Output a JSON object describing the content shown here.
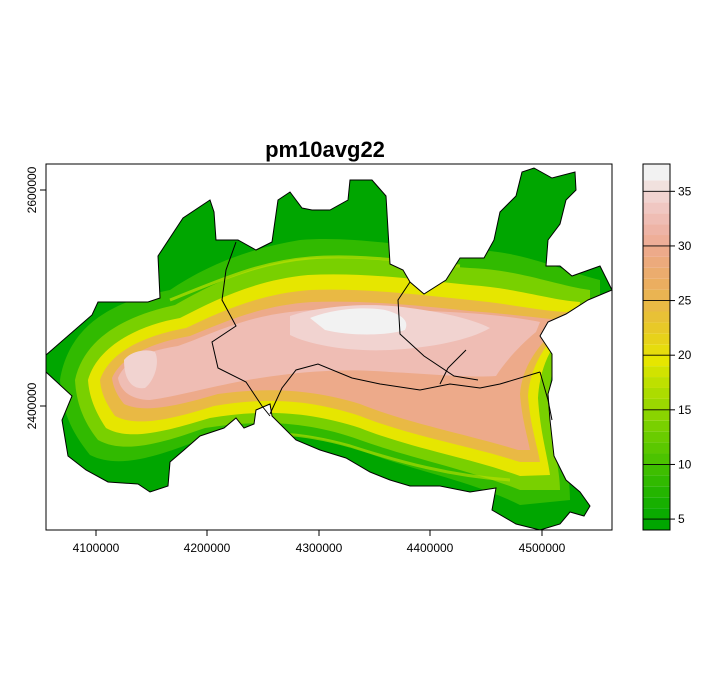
{
  "title": "pm10avg22",
  "x_axis": {
    "ticks": [
      "4100000",
      "4200000",
      "4300000",
      "4400000",
      "4500000"
    ]
  },
  "y_axis": {
    "ticks": [
      "2400000",
      "2600000"
    ]
  },
  "legend": {
    "ticks": [
      "5",
      "10",
      "15",
      "20",
      "25",
      "30",
      "35"
    ],
    "min": 4,
    "max": 37.5,
    "bands": [
      {
        "from": 4,
        "to": 5,
        "color": "#00A600"
      },
      {
        "from": 5,
        "to": 6,
        "color": "#0AAB00"
      },
      {
        "from": 6,
        "to": 7,
        "color": "#17B000"
      },
      {
        "from": 7,
        "to": 8,
        "color": "#24B500"
      },
      {
        "from": 8,
        "to": 9,
        "color": "#31BA00"
      },
      {
        "from": 9,
        "to": 10,
        "color": "#3EBE00"
      },
      {
        "from": 10,
        "to": 11,
        "color": "#4CC300"
      },
      {
        "from": 11,
        "to": 12,
        "color": "#5BC800"
      },
      {
        "from": 12,
        "to": 13,
        "color": "#6ACC00"
      },
      {
        "from": 13,
        "to": 14,
        "color": "#79D000"
      },
      {
        "from": 14,
        "to": 15,
        "color": "#8AD400"
      },
      {
        "from": 15,
        "to": 16,
        "color": "#9BD800"
      },
      {
        "from": 16,
        "to": 17,
        "color": "#ACDC00"
      },
      {
        "from": 17,
        "to": 18,
        "color": "#BEE000"
      },
      {
        "from": 18,
        "to": 19,
        "color": "#D1E300"
      },
      {
        "from": 19,
        "to": 20,
        "color": "#E6E600"
      },
      {
        "from": 20,
        "to": 21,
        "color": "#E6DC0D"
      },
      {
        "from": 21,
        "to": 22,
        "color": "#E7D21A"
      },
      {
        "from": 22,
        "to": 23,
        "color": "#E8C928"
      },
      {
        "from": 23,
        "to": 24,
        "color": "#E8C136"
      },
      {
        "from": 24,
        "to": 25,
        "color": "#E9B944"
      },
      {
        "from": 25,
        "to": 26,
        "color": "#EAB452"
      },
      {
        "from": 26,
        "to": 27,
        "color": "#EBAE60"
      },
      {
        "from": 27,
        "to": 28,
        "color": "#EBAC6E"
      },
      {
        "from": 28,
        "to": 29,
        "color": "#ECAA7C"
      },
      {
        "from": 29,
        "to": 30,
        "color": "#EDAA8A"
      },
      {
        "from": 30,
        "to": 31,
        "color": "#EEAE98"
      },
      {
        "from": 31,
        "to": 32,
        "color": "#EEB4A6"
      },
      {
        "from": 32,
        "to": 33,
        "color": "#EFBDB4"
      },
      {
        "from": 33,
        "to": 34,
        "color": "#F0C7C2"
      },
      {
        "from": 34,
        "to": 35,
        "color": "#F1D3D0"
      },
      {
        "from": 35,
        "to": 36,
        "color": "#F1E1DE"
      },
      {
        "from": 36,
        "to": 37.5,
        "color": "#F2F2F2"
      }
    ]
  },
  "colors": {
    "green_dark": "#00A600",
    "green": "#3EBE00",
    "green_light": "#8AD400",
    "yellow": "#E6E600",
    "orange": "#E9B944",
    "tan": "#EAB452",
    "salmon": "#EDAA8A",
    "pink": "#EFBDB4",
    "white": "#F2F2F2"
  }
}
